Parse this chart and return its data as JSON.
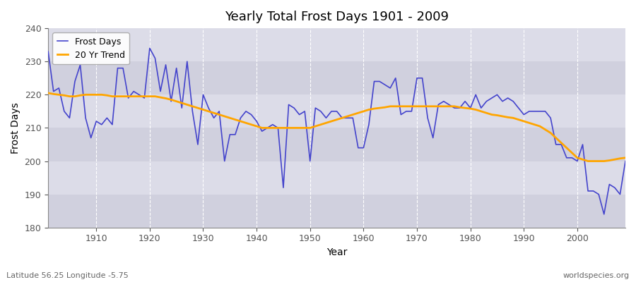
{
  "title": "Yearly Total Frost Days 1901 - 2009",
  "xlabel": "Year",
  "ylabel": "Frost Days",
  "bottom_left_label": "Latitude 56.25 Longitude -5.75",
  "bottom_right_label": "worldspecies.org",
  "legend_entries": [
    "Frost Days",
    "20 Yr Trend"
  ],
  "line_color": "#4444cc",
  "trend_color": "#FFA500",
  "bg_color_light": "#dcdce8",
  "bg_color_dark": "#c8c8d8",
  "ylim": [
    180,
    240
  ],
  "xlim": [
    1901,
    2009
  ],
  "yticks": [
    180,
    190,
    200,
    210,
    220,
    230,
    240
  ],
  "years": [
    1901,
    1902,
    1903,
    1904,
    1905,
    1906,
    1907,
    1908,
    1909,
    1910,
    1911,
    1912,
    1913,
    1914,
    1915,
    1916,
    1917,
    1918,
    1919,
    1920,
    1921,
    1922,
    1923,
    1924,
    1925,
    1926,
    1927,
    1928,
    1929,
    1930,
    1931,
    1932,
    1933,
    1934,
    1935,
    1936,
    1937,
    1938,
    1939,
    1940,
    1941,
    1942,
    1943,
    1944,
    1945,
    1946,
    1947,
    1948,
    1949,
    1950,
    1951,
    1952,
    1953,
    1954,
    1955,
    1956,
    1957,
    1958,
    1959,
    1960,
    1961,
    1962,
    1963,
    1964,
    1965,
    1966,
    1967,
    1968,
    1969,
    1970,
    1971,
    1972,
    1973,
    1974,
    1975,
    1976,
    1977,
    1978,
    1979,
    1980,
    1981,
    1982,
    1983,
    1984,
    1985,
    1986,
    1987,
    1988,
    1989,
    1990,
    1991,
    1992,
    1993,
    1994,
    1995,
    1996,
    1997,
    1998,
    1999,
    2000,
    2001,
    2002,
    2003,
    2004,
    2005,
    2006,
    2007,
    2008,
    2009
  ],
  "frost_days": [
    233,
    221,
    222,
    215,
    213,
    224,
    229,
    213,
    207,
    212,
    211,
    213,
    211,
    228,
    228,
    219,
    221,
    220,
    219,
    234,
    231,
    221,
    229,
    218,
    228,
    216,
    230,
    215,
    205,
    220,
    216,
    213,
    215,
    200,
    208,
    208,
    213,
    215,
    214,
    212,
    209,
    210,
    211,
    210,
    192,
    217,
    216,
    214,
    215,
    200,
    216,
    215,
    213,
    215,
    215,
    213,
    213,
    213,
    204,
    204,
    211,
    224,
    224,
    223,
    222,
    225,
    214,
    215,
    215,
    225,
    225,
    213,
    207,
    217,
    218,
    217,
    216,
    216,
    218,
    216,
    220,
    216,
    218,
    219,
    220,
    218,
    219,
    218,
    216,
    214,
    215,
    215,
    215,
    215,
    213,
    205,
    205,
    201,
    201,
    200,
    205,
    191,
    191,
    190,
    184,
    193,
    192,
    190,
    200
  ],
  "trend": [
    220.5,
    220.2,
    220.0,
    219.8,
    219.5,
    219.5,
    219.8,
    220.0,
    220.0,
    220.0,
    220.0,
    219.8,
    219.5,
    219.5,
    219.5,
    219.5,
    219.5,
    219.5,
    219.5,
    219.5,
    219.5,
    219.2,
    218.9,
    218.5,
    218.0,
    217.5,
    217.0,
    216.5,
    216.0,
    215.5,
    215.0,
    214.5,
    214.0,
    213.5,
    213.0,
    212.5,
    212.0,
    211.5,
    211.0,
    210.5,
    210.0,
    210.0,
    210.0,
    210.0,
    210.0,
    210.0,
    210.0,
    210.0,
    210.0,
    210.0,
    210.5,
    211.0,
    211.5,
    212.0,
    212.5,
    213.0,
    213.5,
    214.0,
    214.5,
    215.0,
    215.5,
    215.8,
    216.0,
    216.2,
    216.5,
    216.5,
    216.5,
    216.5,
    216.5,
    216.5,
    216.5,
    216.5,
    216.5,
    216.5,
    216.5,
    216.5,
    216.5,
    216.2,
    216.0,
    215.8,
    215.5,
    215.0,
    214.5,
    214.0,
    213.8,
    213.5,
    213.2,
    213.0,
    212.5,
    212.0,
    211.5,
    211.0,
    210.5,
    209.5,
    208.5,
    207.0,
    205.5,
    204.0,
    202.5,
    201.0,
    200.5,
    200.0,
    200.0,
    200.0,
    200.0,
    200.2,
    200.5,
    200.8,
    201.0
  ]
}
